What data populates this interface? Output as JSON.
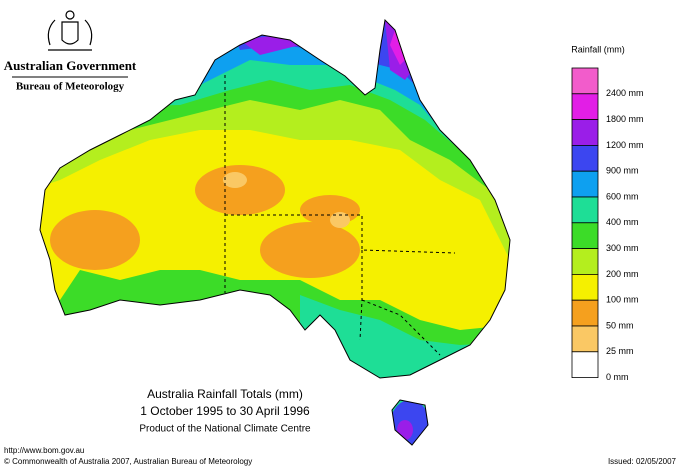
{
  "header": {
    "organisation": "Australian Government",
    "department": "Bureau of Meteorology"
  },
  "legend": {
    "title": "Rainfall (mm)",
    "items": [
      {
        "label": "2400 mm",
        "color": "#f25ccb"
      },
      {
        "label": "1800 mm",
        "color": "#e21ee6"
      },
      {
        "label": "1200 mm",
        "color": "#9a1ee8"
      },
      {
        "label": "900 mm",
        "color": "#3c46f0"
      },
      {
        "label": "600 mm",
        "color": "#0ea0f0"
      },
      {
        "label": "400 mm",
        "color": "#1ede96"
      },
      {
        "label": "300 mm",
        "color": "#3cdc28"
      },
      {
        "label": "200 mm",
        "color": "#b4ee1e"
      },
      {
        "label": "100 mm",
        "color": "#f5f000"
      },
      {
        "label": "50 mm",
        "color": "#f5a01e"
      },
      {
        "label": "25 mm",
        "color": "#fac864"
      },
      {
        "label": "0 mm",
        "color": "#ffffff"
      }
    ]
  },
  "map": {
    "title": "Australia Rainfall Totals (mm)",
    "period": "1 October 1995 to 30 April 1996",
    "credit": "Product of the National Climate Centre"
  },
  "footer": {
    "url": "http://www.bom.gov.au",
    "copyright": "© Commonwealth of Australia 2007, Australian Bureau of Meteorology",
    "issued": "Issued: 02/05/2007"
  }
}
